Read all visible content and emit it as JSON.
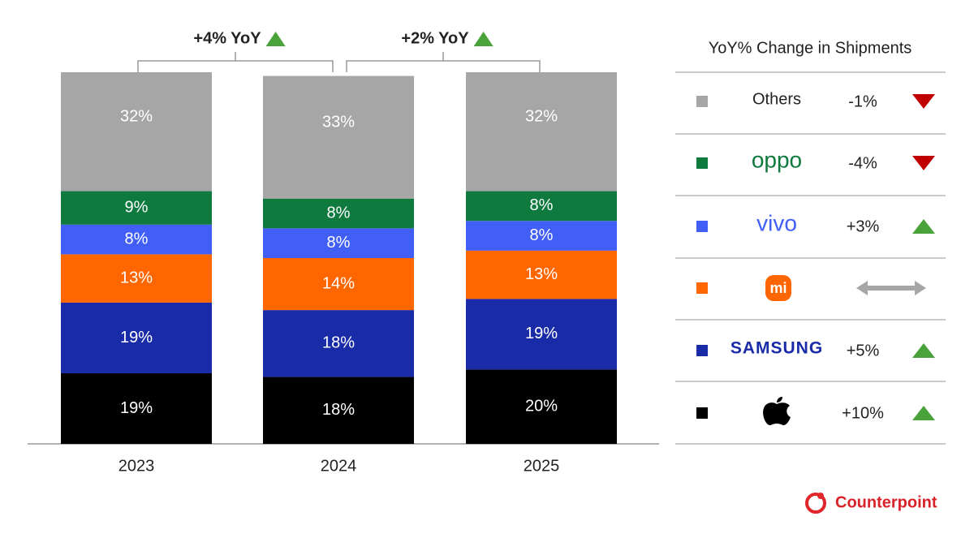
{
  "chart_data": {
    "type": "stacked_bar",
    "categories": [
      "2023",
      "2024",
      "2025"
    ],
    "ylim": [
      0,
      100
    ],
    "series": [
      {
        "color": "#000000",
        "values": [
          19,
          18,
          20
        ],
        "value_labels": [
          "19%",
          "18%",
          "20%"
        ],
        "yoy": 10,
        "yoy_label": "+10%"
      },
      {
        "name": "SAMSUNG",
        "color": "#1a2ba8",
        "values": [
          19,
          18,
          19
        ],
        "value_labels": [
          "19%",
          "18%",
          "19%"
        ],
        "yoy": 5,
        "yoy_label": "+5%"
      },
      {
        "name": "mi",
        "color": "#ff6600",
        "values": [
          13,
          14,
          13
        ],
        "value_labels": [
          "13%",
          "14%",
          "13%"
        ],
        "yoy": null
      },
      {
        "name": "vivo",
        "color": "#415ff7",
        "values": [
          8,
          8,
          8
        ],
        "value_labels": [
          "8%",
          "8%",
          "8%"
        ],
        "yoy": 3,
        "yoy_label": "+3%"
      },
      {
        "name": "oppo",
        "color": "#0e7a3e",
        "values": [
          9,
          8,
          8
        ],
        "value_labels": [
          "9%",
          "8%",
          "8%"
        ],
        "yoy": -4,
        "yoy_label": "-4%"
      },
      {
        "name": "Others",
        "color": "#a6a6a6",
        "values": [
          32,
          33,
          32
        ],
        "value_labels": [
          "32%",
          "33%",
          "32%"
        ],
        "yoy": -1,
        "yoy_label": "-1%"
      }
    ],
    "annotations": [
      "+4% YoY",
      "+2% YoY"
    ],
    "legend_title": "YoY% Change in Shipments",
    "brand": "Counterpoint"
  }
}
